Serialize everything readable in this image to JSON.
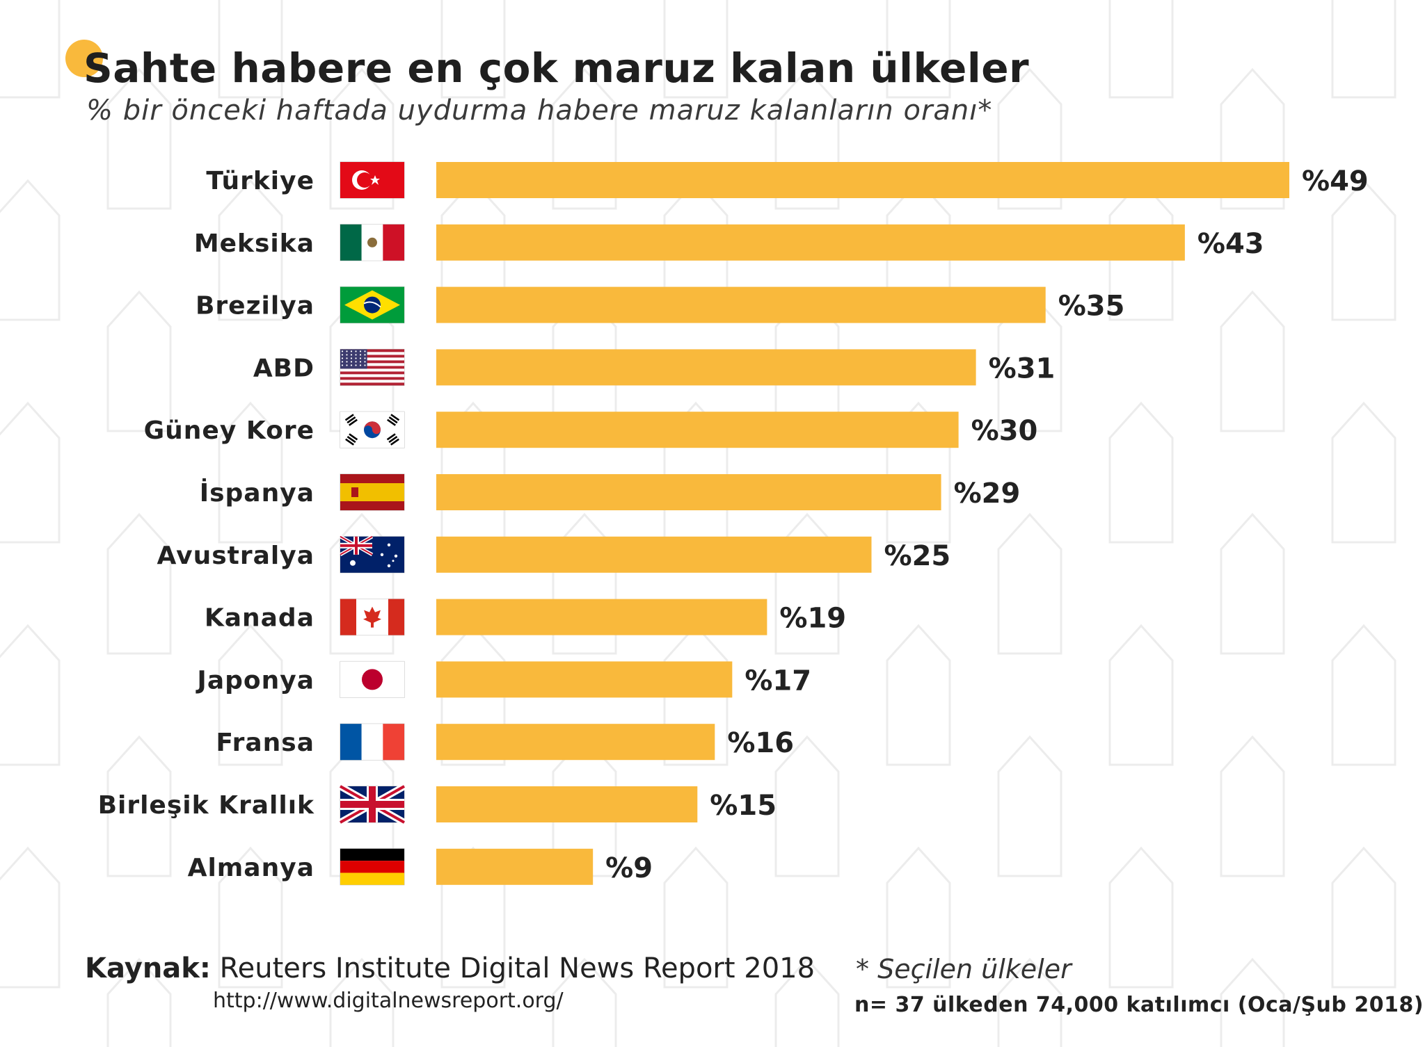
{
  "header": {
    "title": "Sahte habere en çok maruz kalan ülkeler",
    "subtitle": "% bir önceki haftada uydurma habere maruz kalanların oranı*"
  },
  "colors": {
    "bar": "#F9B93C",
    "accent_dot": "#F9B93C",
    "text": "#222222",
    "pattern": "#ECECEC"
  },
  "chart_data": {
    "type": "bar",
    "orientation": "horizontal",
    "categories": [
      "Türkiye",
      "Meksika",
      "Brezilya",
      "ABD",
      "Güney Kore",
      "İspanya",
      "Avustralya",
      "Kanada",
      "Japonya",
      "Fransa",
      "Birleşik Krallık",
      "Almanya"
    ],
    "values": [
      49,
      43,
      35,
      31,
      30,
      29,
      25,
      19,
      17,
      16,
      15,
      9
    ],
    "value_labels": [
      "%49",
      "%43",
      "%35",
      "%31",
      "%30",
      "%29",
      "%25",
      "%19",
      "%17",
      "%16",
      "%15",
      "%9"
    ],
    "flags": [
      "turkey-flag-icon",
      "mexico-flag-icon",
      "brazil-flag-icon",
      "usa-flag-icon",
      "south-korea-flag-icon",
      "spain-flag-icon",
      "australia-flag-icon",
      "canada-flag-icon",
      "japan-flag-icon",
      "france-flag-icon",
      "uk-flag-icon",
      "germany-flag-icon"
    ],
    "xlim": [
      0,
      49
    ],
    "grid": false,
    "legend": "none"
  },
  "footer": {
    "source_label": "Kaynak:",
    "source_text": " Reuters Institute Digital News Report 2018",
    "source_url": "http://www.digitalnewsreport.org/",
    "note_selected": "* Seçilen ülkeler",
    "note_sample": "n= 37 ülkeden 74,000 katılımcı (Oca/Şub 2018)"
  }
}
